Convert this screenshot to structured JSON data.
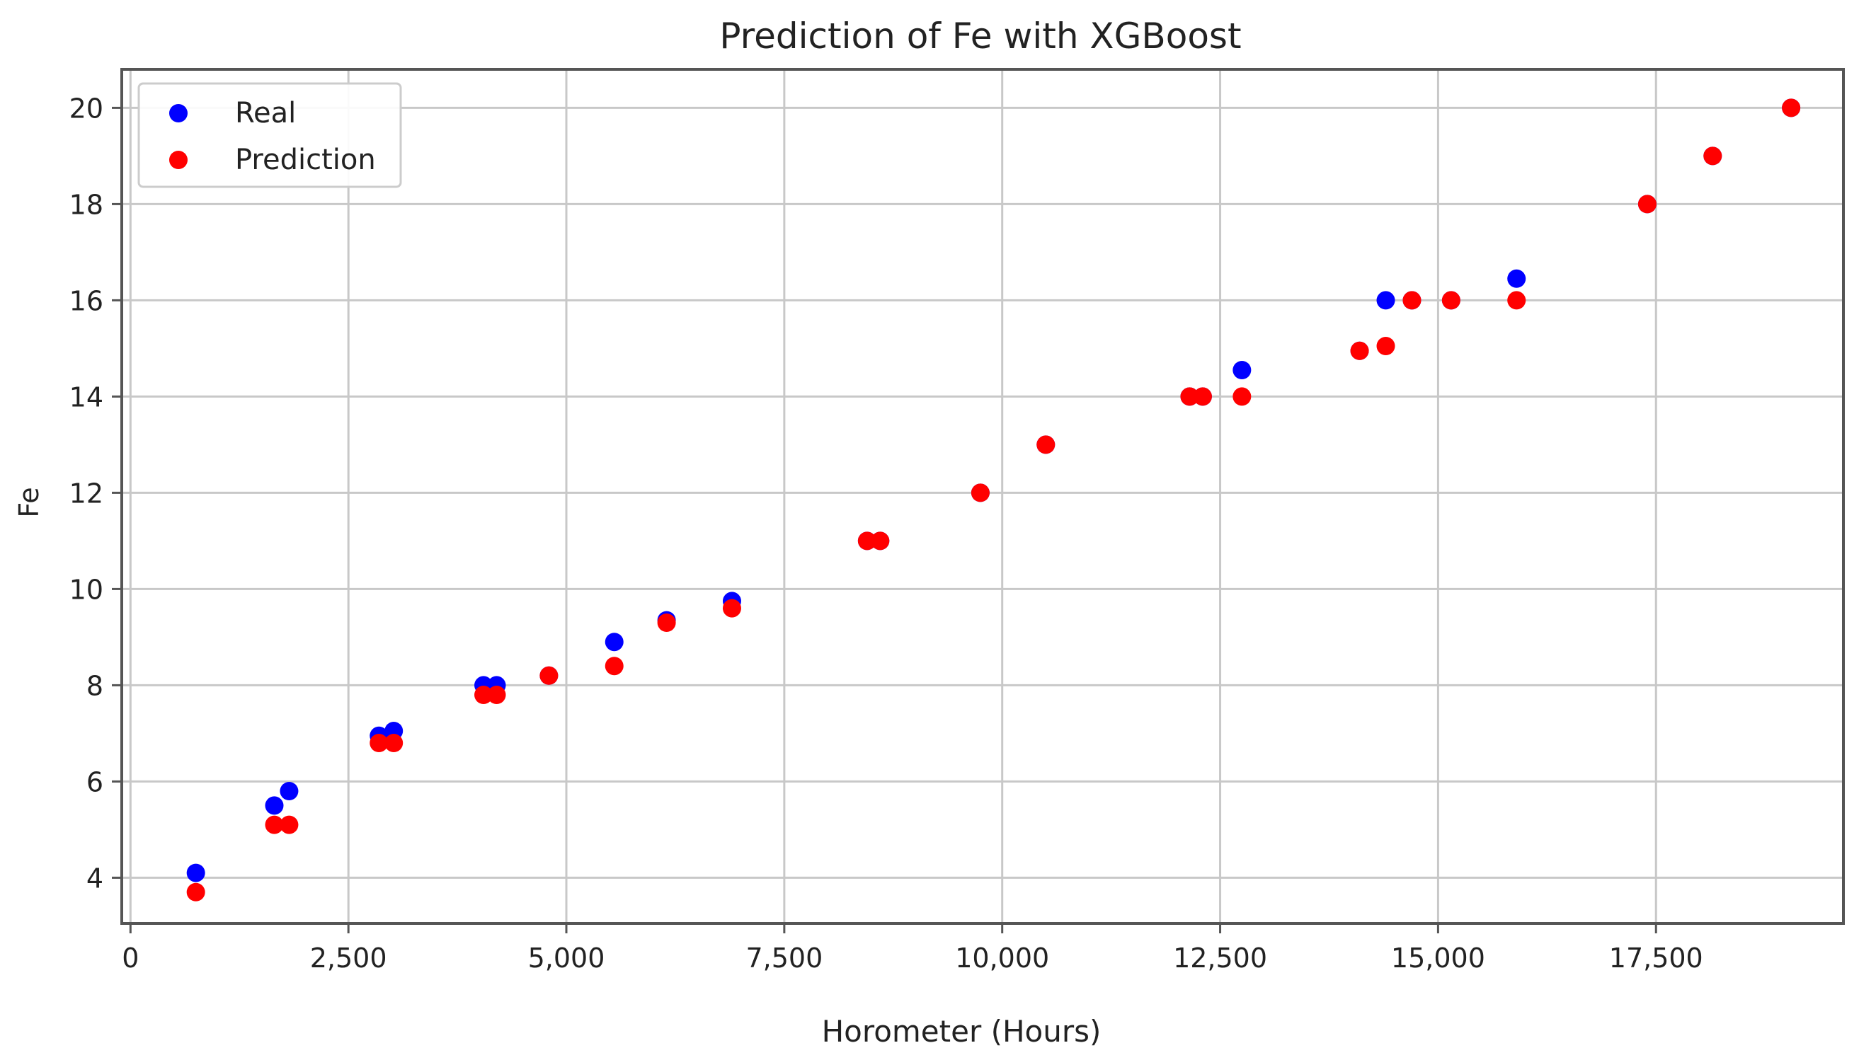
{
  "chart_data": {
    "type": "scatter",
    "title": "Prediction of  Fe with XGBoost",
    "xlabel": "Horometer (Hours)",
    "ylabel": "Fe",
    "xlim": [
      -100,
      19650
    ],
    "ylim": [
      3.05,
      20.8
    ],
    "xticks": [
      0,
      2500,
      5000,
      7500,
      10000,
      12500,
      15000,
      17500
    ],
    "xtick_labels": [
      "0",
      "2,500",
      "5,000",
      "7,500",
      "10,000",
      "12,500",
      "15,000",
      "17,500"
    ],
    "yticks": [
      4,
      6,
      8,
      10,
      12,
      14,
      16,
      18,
      20
    ],
    "ytick_labels": [
      "4",
      "6",
      "8",
      "10",
      "12",
      "14",
      "16",
      "18",
      "20"
    ],
    "grid": true,
    "legend_position": "top-left",
    "series": [
      {
        "name": "Real",
        "color": "#0000ff",
        "points": [
          [
            750,
            4.1
          ],
          [
            1650,
            5.5
          ],
          [
            1820,
            5.8
          ],
          [
            2850,
            6.95
          ],
          [
            3020,
            7.05
          ],
          [
            4050,
            8.0
          ],
          [
            4200,
            8.0
          ],
          [
            4800,
            8.2
          ],
          [
            5550,
            8.9
          ],
          [
            6150,
            9.35
          ],
          [
            6900,
            9.75
          ],
          [
            8450,
            11.0
          ],
          [
            8600,
            11.0
          ],
          [
            9750,
            12.0
          ],
          [
            10500,
            13.0
          ],
          [
            12150,
            14.0
          ],
          [
            12300,
            14.0
          ],
          [
            12750,
            14.55
          ],
          [
            14100,
            14.95
          ],
          [
            14400,
            16.0
          ],
          [
            14700,
            16.0
          ],
          [
            15150,
            16.0
          ],
          [
            15900,
            16.45
          ],
          [
            17400,
            18.0
          ],
          [
            18150,
            19.0
          ],
          [
            19050,
            20.0
          ]
        ]
      },
      {
        "name": "Prediction",
        "color": "#ff0000",
        "points": [
          [
            750,
            3.7
          ],
          [
            1650,
            5.1
          ],
          [
            1820,
            5.1
          ],
          [
            2850,
            6.8
          ],
          [
            3020,
            6.8
          ],
          [
            4050,
            7.8
          ],
          [
            4200,
            7.8
          ],
          [
            4800,
            8.2
          ],
          [
            5550,
            8.4
          ],
          [
            6150,
            9.3
          ],
          [
            6900,
            9.6
          ],
          [
            8450,
            11.0
          ],
          [
            8600,
            11.0
          ],
          [
            9750,
            12.0
          ],
          [
            10500,
            13.0
          ],
          [
            12150,
            14.0
          ],
          [
            12300,
            14.0
          ],
          [
            12750,
            14.0
          ],
          [
            14100,
            14.95
          ],
          [
            14400,
            15.05
          ],
          [
            14700,
            16.0
          ],
          [
            15150,
            16.0
          ],
          [
            15900,
            16.0
          ],
          [
            17400,
            18.0
          ],
          [
            18150,
            19.0
          ],
          [
            19050,
            20.0
          ]
        ]
      }
    ]
  }
}
